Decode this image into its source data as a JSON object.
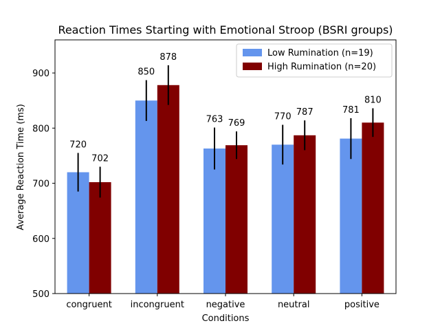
{
  "chart_data": {
    "type": "bar",
    "title": "Reaction Times Starting with Emotional Stroop (BSRI groups)",
    "xlabel": "Conditions",
    "ylabel": "Average Reaction Time (ms)",
    "categories": [
      "congruent",
      "incongruent",
      "negative",
      "neutral",
      "positive"
    ],
    "ylim": [
      500,
      960
    ],
    "yticks": [
      500,
      600,
      700,
      800,
      900
    ],
    "grid": false,
    "legend_position": "top-right",
    "series": [
      {
        "name": "Low Rumination (n=19)",
        "color": "#6495ED",
        "values": [
          720,
          850,
          763,
          770,
          781
        ],
        "errors": [
          35,
          37,
          38,
          36,
          37
        ]
      },
      {
        "name": "High Rumination (n=20)",
        "color": "#800000",
        "values": [
          702,
          878,
          769,
          787,
          810
        ],
        "errors": [
          28,
          36,
          25,
          27,
          26
        ]
      }
    ]
  }
}
